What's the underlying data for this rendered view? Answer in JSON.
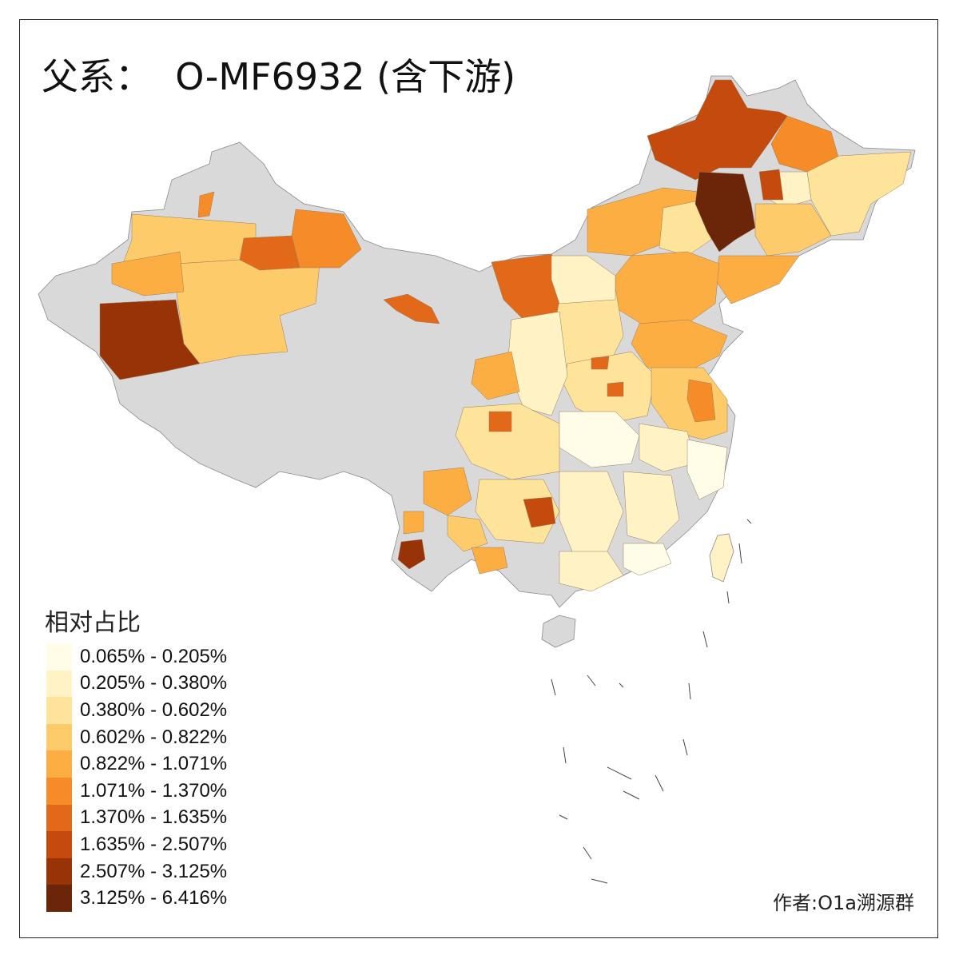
{
  "title": "父系：  O-MF6932 (含下游)",
  "legend": {
    "title": "相对占比",
    "items": [
      {
        "label": "0.065% - 0.205%",
        "color": "#fffde8"
      },
      {
        "label": "0.205% - 0.380%",
        "color": "#fff2c4"
      },
      {
        "label": "0.380% - 0.602%",
        "color": "#fee39a"
      },
      {
        "label": "0.602% - 0.822%",
        "color": "#fecb6a"
      },
      {
        "label": "0.822% - 1.071%",
        "color": "#fdae42"
      },
      {
        "label": "1.071% - 1.370%",
        "color": "#f58c28"
      },
      {
        "label": "1.370% - 1.635%",
        "color": "#e2691a"
      },
      {
        "label": "1.635% - 2.507%",
        "color": "#c44b0d"
      },
      {
        "label": "2.507% - 3.125%",
        "color": "#973306"
      },
      {
        "label": "3.125% - 6.416%",
        "color": "#6b2508"
      }
    ]
  },
  "no_data_color": "#d9d9d9",
  "credit": "作者:O1a溯源群"
}
